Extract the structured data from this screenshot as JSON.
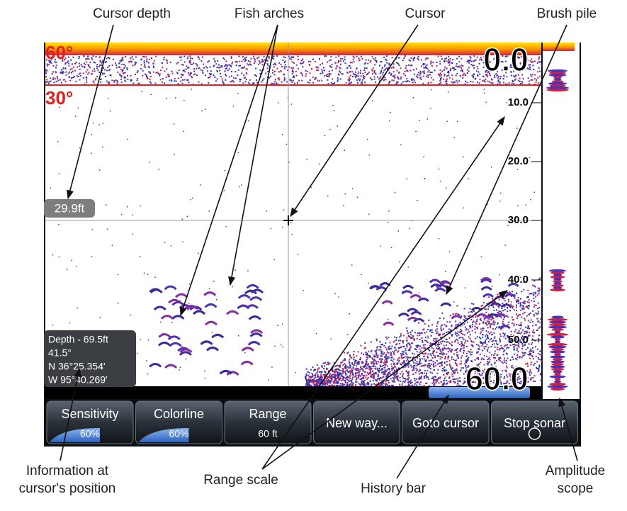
{
  "callouts": {
    "cursor_depth": "Cursor depth",
    "fish_arches": "Fish arches",
    "cursor": "Cursor",
    "brush_pile": "Brush pile",
    "info": [
      "Information at",
      "cursor's position"
    ],
    "range_scale": "Range scale",
    "history_bar": "History bar",
    "amplitude_scope": "Amplitude scope"
  },
  "screen": {
    "beam_outer": "60°",
    "beam_inner": "30°",
    "depth": "0.0",
    "range_marks": [
      "10.0",
      "20.0",
      "30.0",
      "40.0",
      "50.0"
    ],
    "range_bottom": "60.0",
    "cursor_depth": "29.9ft",
    "info": [
      "Depth - 69.5ft",
      "41.5°",
      "N  36°25.354'",
      "W  95°40.269'"
    ],
    "buttons": [
      {
        "label": "Sensitivity",
        "value": "60%"
      },
      {
        "label": "Colorline",
        "value": "60%"
      },
      {
        "label": "Range",
        "value": "60 ft"
      },
      {
        "label": "New way..."
      },
      {
        "label": "Goto cursor"
      },
      {
        "label": "Stop sonar"
      }
    ]
  }
}
